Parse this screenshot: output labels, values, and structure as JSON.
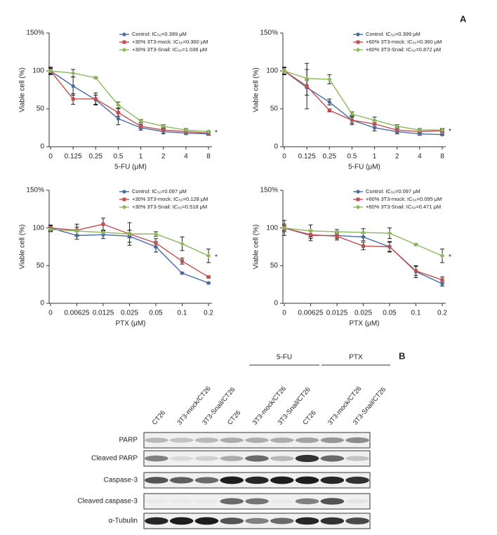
{
  "panel_labels": [
    "A",
    "B"
  ],
  "chart_data": [
    {
      "type": "line",
      "x_label": "5-FU (μM)",
      "y_label": "Viable cell (%)",
      "categories": [
        "0",
        "0.125",
        "0.25",
        "0.5",
        "1",
        "2",
        "4",
        "8"
      ],
      "ylim": [
        0,
        150
      ],
      "yticks": [
        0,
        50,
        100,
        {
          "value": 150,
          "label": "150%"
        }
      ],
      "annotation": "*",
      "series": [
        {
          "name": "Control: IC₅₀=0.399 μM",
          "color": "#4a6aa5",
          "marker": "circle",
          "values": [
            100,
            80,
            62,
            37,
            25,
            20,
            18,
            17
          ],
          "errors": [
            5,
            12,
            6,
            8,
            3,
            3,
            2,
            2
          ]
        },
        {
          "name": "+30% 3T3-mock: IC₅₀=0.360 μM",
          "color": "#c0504d",
          "marker": "square",
          "values": [
            100,
            63,
            63,
            45,
            27,
            22,
            20,
            18
          ],
          "errors": [
            3,
            7,
            8,
            5,
            3,
            2,
            2,
            2
          ]
        },
        {
          "name": "+30% 3T3-Snail: IC₅₀=1.036 μM",
          "color": "#8ab85a",
          "marker": "diamond",
          "values": [
            100,
            97,
            91,
            55,
            34,
            27,
            22,
            20
          ],
          "errors": [
            4,
            5,
            1,
            4,
            2,
            2,
            2,
            1
          ]
        }
      ]
    },
    {
      "type": "line",
      "x_label": "5-FU (μM)",
      "y_label": "Viable cell (%)",
      "categories": [
        "0",
        "0.125",
        "0.25",
        "0.5",
        "1",
        "2",
        "4",
        "8"
      ],
      "ylim": [
        0,
        150
      ],
      "yticks": [
        0,
        50,
        100,
        {
          "value": 150,
          "label": "150%"
        }
      ],
      "annotation": "*",
      "series": [
        {
          "name": "Control: IC₅₀=0.399 μM",
          "color": "#4a6aa5",
          "marker": "circle",
          "values": [
            100,
            78,
            59,
            35,
            25,
            20,
            17,
            16
          ],
          "errors": [
            5,
            10,
            4,
            6,
            4,
            3,
            2,
            1
          ]
        },
        {
          "name": "+60% 3T3-mock: IC₅₀=0.360 μM",
          "color": "#c0504d",
          "marker": "square",
          "values": [
            100,
            80,
            48,
            35,
            30,
            22,
            20,
            21
          ],
          "errors": [
            4,
            30,
            2,
            4,
            4,
            3,
            2,
            2
          ]
        },
        {
          "name": "+60% 3T3-Snail: IC₅₀=0.872 μM",
          "color": "#8ab85a",
          "marker": "diamond",
          "values": [
            100,
            90,
            89,
            43,
            35,
            27,
            22,
            22
          ],
          "errors": [
            5,
            12,
            6,
            3,
            4,
            2,
            2,
            2
          ]
        }
      ]
    },
    {
      "type": "line",
      "x_label": "PTX (μM)",
      "y_label": "Viable cell (%)",
      "categories": [
        "0",
        "0.00625",
        "0.0125",
        "0.025",
        "0.05",
        "0.1",
        "0.2"
      ],
      "ylim": [
        0,
        150
      ],
      "yticks": [
        0,
        50,
        100,
        {
          "value": 150,
          "label": "150%"
        }
      ],
      "annotation": "*",
      "series": [
        {
          "name": "Control: IC₅₀=0.097 μM",
          "color": "#4a6aa5",
          "marker": "circle",
          "values": [
            100,
            90,
            91,
            89,
            75,
            40,
            27
          ],
          "errors": [
            4,
            5,
            5,
            8,
            7,
            1,
            1
          ]
        },
        {
          "name": "+30% 3T3-mock: IC₅₀=0.128 μM",
          "color": "#c0504d",
          "marker": "square",
          "values": [
            100,
            97,
            105,
            92,
            80,
            56,
            35
          ],
          "errors": [
            3,
            8,
            8,
            15,
            6,
            4,
            1
          ]
        },
        {
          "name": "+30% 3T3-Snail: IC₅₀=0.518 μM",
          "color": "#8ab85a",
          "marker": "diamond",
          "values": [
            98,
            96,
            94,
            92,
            92,
            79,
            63
          ],
          "errors": [
            3,
            5,
            3,
            5,
            3,
            9,
            9
          ]
        }
      ]
    },
    {
      "type": "line",
      "x_label": "PTX (μM)",
      "y_label": "Viable cell (%)",
      "categories": [
        "0",
        "0.00625",
        "0.0125",
        "0.025",
        "0.05",
        "0.1",
        "0.2"
      ],
      "ylim": [
        0,
        150
      ],
      "yticks": [
        0,
        50,
        100,
        {
          "value": 150,
          "label": "150%"
        }
      ],
      "annotation": "*",
      "series": [
        {
          "name": "Control: IC₅₀=0.097 μM",
          "color": "#4a6aa5",
          "marker": "circle",
          "values": [
            100,
            90,
            90,
            88,
            75,
            42,
            26
          ],
          "errors": [
            10,
            7,
            4,
            5,
            6,
            8,
            3
          ]
        },
        {
          "name": "+60% 3T3-mock: IC₅₀=0.095 μM",
          "color": "#c0504d",
          "marker": "square",
          "values": [
            100,
            91,
            89,
            76,
            75,
            43,
            31
          ],
          "errors": [
            5,
            5,
            5,
            5,
            7,
            6,
            4
          ]
        },
        {
          "name": "+60% 3T3-Snail: IC₅₀=0.471 μM",
          "color": "#8ab85a",
          "marker": "diamond",
          "values": [
            100,
            96,
            95,
            94,
            93,
            78,
            63
          ],
          "errors": [
            3,
            8,
            3,
            5,
            7,
            1,
            9
          ]
        }
      ]
    }
  ],
  "blot": {
    "groups": [
      {
        "label": "5-FU"
      },
      {
        "label": "PTX"
      }
    ],
    "lanes": [
      "CT26",
      "3T3-mock/CT26",
      "3T3-Snail/CT26",
      "CT26",
      "3T3-mock/CT26",
      "3T3-Snail/CT26",
      "CT26",
      "3T3-mock/CT26",
      "3T3-Snail/CT26"
    ],
    "rows": [
      "PARP",
      "Cleaved PARP",
      "Caspase-3",
      "Cleaved caspase-3",
      "α-Tubulin"
    ]
  }
}
